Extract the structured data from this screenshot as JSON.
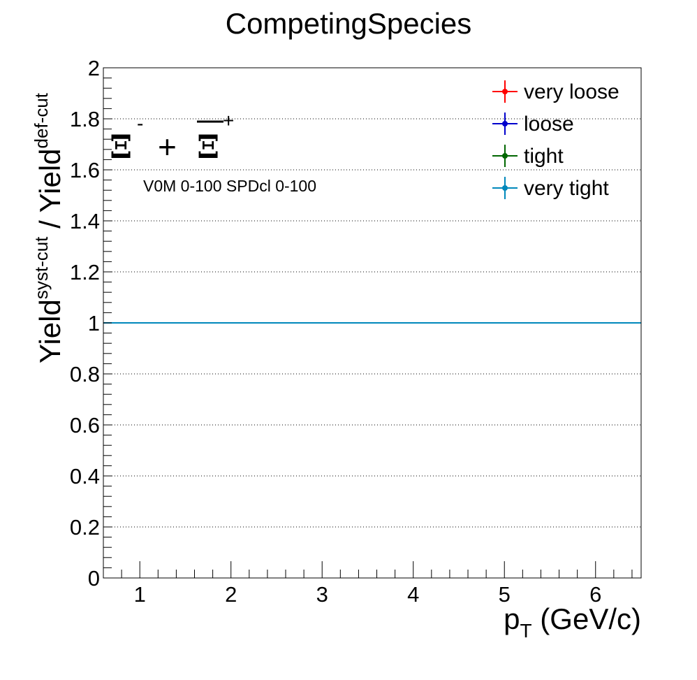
{
  "chart_data": {
    "type": "line",
    "title": "CompetingSpecies",
    "xlabel": {
      "base": "p",
      "sub": "T",
      "rest": " (GeV/c)"
    },
    "ylabel": {
      "base1": "Yield",
      "sup1": "syst-cut",
      "sep": " / ",
      "base2": "Yield",
      "sup2": "def-cut"
    },
    "xlim": [
      0.6,
      6.5
    ],
    "ylim": [
      0,
      2
    ],
    "x_ticks": [
      1,
      2,
      3,
      4,
      5,
      6
    ],
    "x_tick_labels": [
      "1",
      "2",
      "3",
      "4",
      "5",
      "6"
    ],
    "y_ticks": [
      0,
      0.2,
      0.4,
      0.6,
      0.8,
      1,
      1.2,
      1.4,
      1.6,
      1.8,
      2
    ],
    "y_tick_labels": [
      "0",
      "0.2",
      "0.4",
      "0.6",
      "0.8",
      "1",
      "1.2",
      "1.4",
      "1.6",
      "1.8",
      "2"
    ],
    "grid": "horizontal dotted",
    "legend_placement": "top-right",
    "particle_label": {
      "xi": "Ξ",
      "minus": "-",
      "plus_op": "+",
      "plus": "+"
    },
    "annotation": "V0M 0-100 SPDcl 0-100",
    "series": [
      {
        "name": "very loose",
        "color": "#ff0000",
        "x": [
          0.6,
          6.5
        ],
        "y": [
          1,
          1
        ]
      },
      {
        "name": "loose",
        "color": "#0000cc",
        "x": [
          0.6,
          6.5
        ],
        "y": [
          1,
          1
        ]
      },
      {
        "name": "tight",
        "color": "#006600",
        "x": [
          0.6,
          6.5
        ],
        "y": [
          1,
          1
        ]
      },
      {
        "name": "very tight",
        "color": "#0088bb",
        "x": [
          0.6,
          6.5
        ],
        "y": [
          1,
          1
        ]
      }
    ]
  }
}
